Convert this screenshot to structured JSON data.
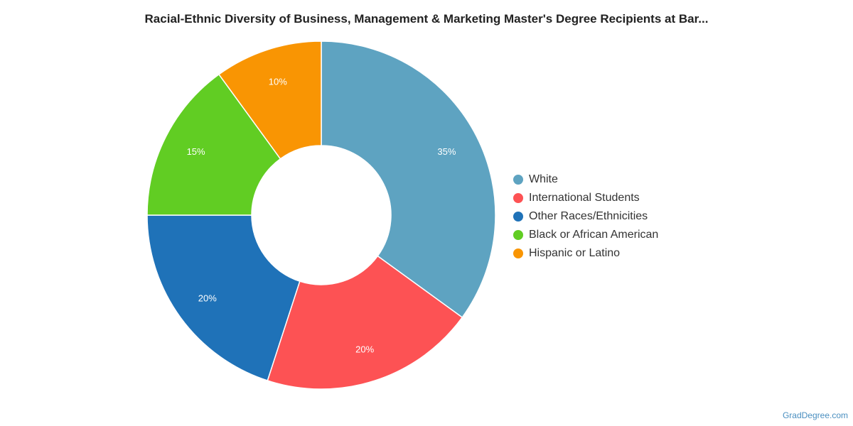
{
  "title": "Racial-Ethnic Diversity of Business, Management & Marketing Master's Degree Recipients at Bar...",
  "source": "GradDegree.com",
  "chart_data": {
    "type": "pie",
    "donut": true,
    "legend_position": "right",
    "start_angle_deg": 0,
    "direction": "clockwise",
    "slices": [
      {
        "label": "White",
        "value": 35,
        "value_label": "35%",
        "color": "#5ea3c1"
      },
      {
        "label": "International Students",
        "value": 20,
        "value_label": "20%",
        "color": "#fd5254"
      },
      {
        "label": "Other Races/Ethnicities",
        "value": 20,
        "value_label": "20%",
        "color": "#1f72b8"
      },
      {
        "label": "Black or African American",
        "value": 15,
        "value_label": "15%",
        "color": "#61cd23"
      },
      {
        "label": "Hispanic or Latino",
        "value": 10,
        "value_label": "10%",
        "color": "#f99503"
      }
    ]
  }
}
